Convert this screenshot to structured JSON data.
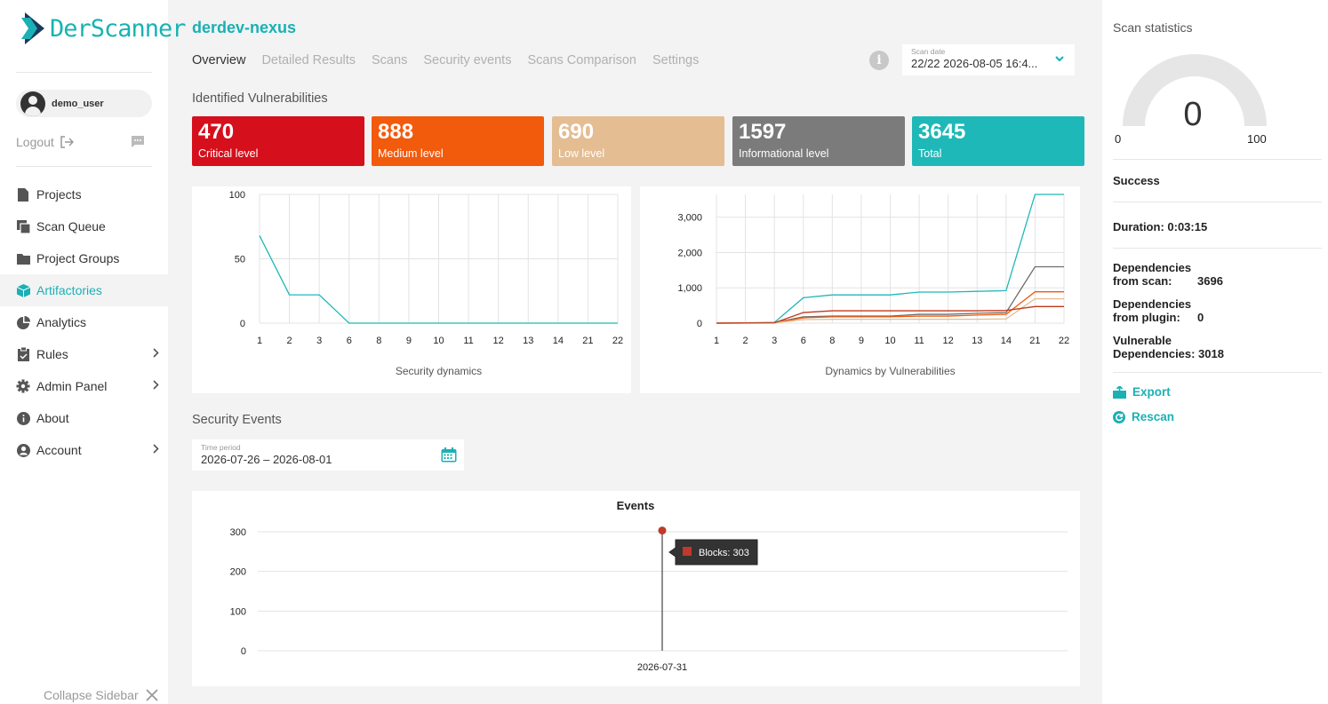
{
  "brand": {
    "logo_text": "DerScanner",
    "accent": "#1ab0b5"
  },
  "user": {
    "name": "demo_user",
    "logout_label": "Logout"
  },
  "sidebar": {
    "items": [
      {
        "label": "Projects",
        "icon": "file-icon"
      },
      {
        "label": "Scan Queue",
        "icon": "queue-icon"
      },
      {
        "label": "Project Groups",
        "icon": "folder-icon"
      },
      {
        "label": "Artifactories",
        "icon": "cube-icon",
        "active": true
      },
      {
        "label": "Analytics",
        "icon": "pie-icon"
      },
      {
        "label": "Rules",
        "icon": "clipboard-icon",
        "expandable": true
      },
      {
        "label": "Admin Panel",
        "icon": "gear-icon",
        "expandable": true
      },
      {
        "label": "About",
        "icon": "info-icon"
      },
      {
        "label": "Account",
        "icon": "user-icon",
        "expandable": true
      }
    ],
    "collapse_label": "Collapse Sidebar"
  },
  "header": {
    "project_title": "derdev-nexus",
    "tabs": [
      "Overview",
      "Detailed Results",
      "Scans",
      "Security events",
      "Scans Comparison",
      "Settings"
    ],
    "active_tab": "Overview",
    "scan_date": {
      "label": "Scan date",
      "value": "22/22 2026-08-05 16:4..."
    }
  },
  "vulnerabilities": {
    "title": "Identified Vulnerabilities",
    "cards": [
      {
        "value": "470",
        "label": "Critical level",
        "color": "#d50f1c"
      },
      {
        "value": "888",
        "label": "Medium level",
        "color": "#f25a0c"
      },
      {
        "value": "690",
        "label": "Low level",
        "color": "#e4bd92"
      },
      {
        "value": "1597",
        "label": "Informational level",
        "color": "#7b7b7b"
      },
      {
        "value": "3645",
        "label": "Total",
        "color": "#1fb8b8"
      }
    ]
  },
  "security_events": {
    "title": "Security Events",
    "time_period": {
      "label": "Time period",
      "value": "2026-07-26 – 2026-08-01"
    }
  },
  "chart_data": [
    {
      "type": "line",
      "title": "Security dynamics",
      "x": [
        "1",
        "2",
        "3",
        "6",
        "8",
        "9",
        "10",
        "11",
        "12",
        "13",
        "14",
        "21",
        "22"
      ],
      "series": [
        {
          "values": [
            68,
            22,
            22,
            0,
            0,
            0,
            0,
            0,
            0,
            0,
            0,
            0,
            0
          ],
          "color": "#1fb8b8"
        }
      ],
      "ylim": [
        0,
        100
      ],
      "yticks": [
        "0",
        "50",
        "100"
      ],
      "grid": true
    },
    {
      "type": "line",
      "title": "Dynamics by Vulnerabilities",
      "x": [
        "1",
        "2",
        "3",
        "6",
        "8",
        "9",
        "10",
        "11",
        "12",
        "13",
        "14",
        "21",
        "22"
      ],
      "series": [
        {
          "values": [
            0,
            10,
            20,
            720,
            800,
            800,
            800,
            880,
            880,
            900,
            920,
            3645,
            3645
          ],
          "color": "#1fb8b8"
        },
        {
          "values": [
            0,
            5,
            15,
            180,
            200,
            200,
            200,
            250,
            250,
            280,
            300,
            1597,
            1597
          ],
          "color": "#6e6e6e"
        },
        {
          "values": [
            0,
            5,
            10,
            150,
            180,
            180,
            180,
            200,
            200,
            230,
            250,
            888,
            888
          ],
          "color": "#f25a0c"
        },
        {
          "values": [
            0,
            3,
            8,
            100,
            110,
            110,
            110,
            110,
            110,
            110,
            120,
            690,
            690
          ],
          "color": "#e4bd92"
        },
        {
          "values": [
            0,
            5,
            10,
            300,
            350,
            350,
            350,
            350,
            350,
            350,
            360,
            470,
            470
          ],
          "color": "#c0391b"
        }
      ],
      "ylim": [
        0,
        3645
      ],
      "yticks": [
        "0",
        "1,000",
        "2,000",
        "3,000"
      ],
      "grid": true
    },
    {
      "type": "bar",
      "title": "Events",
      "categories": [
        "2026-07-31"
      ],
      "series": [
        {
          "name": "Blocks",
          "values": [
            303
          ],
          "color": "#c0392b"
        }
      ],
      "ylim": [
        0,
        320
      ],
      "yticks": [
        "0",
        "100",
        "200",
        "300"
      ],
      "tooltip": "Blocks: 303",
      "grid": true
    }
  ],
  "stats": {
    "title": "Scan statistics",
    "gauge": {
      "value": "0",
      "min": "0",
      "max": "100"
    },
    "status": "Success",
    "duration": "Duration: 0:03:15",
    "dep_scan_label": "Dependencies from scan:",
    "dep_scan_label_1": "Dependencies",
    "dep_scan_label_2": "from scan:",
    "dep_scan_value": "3696",
    "dep_plugin_label_1": "Dependencies",
    "dep_plugin_label_2": "from plugin:",
    "dep_plugin_value": "0",
    "vuln_dep_label_1": "Vulnerable",
    "vuln_dep_label_2": "Dependencies:",
    "vuln_dep_value": "3018",
    "export_label": "Export",
    "rescan_label": "Rescan"
  }
}
